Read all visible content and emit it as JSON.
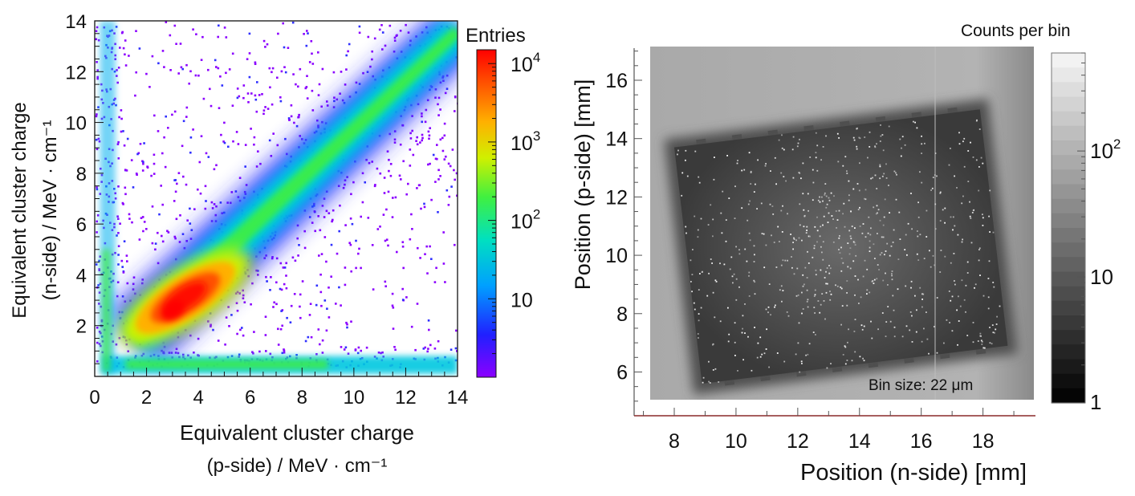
{
  "chart_data": [
    {
      "type": "heatmap",
      "title": "",
      "xlabel_line1": "Equivalent cluster charge",
      "xlabel_line2": "(p-side) / MeV · cm⁻¹",
      "ylabel_line1": "Equivalent cluster charge",
      "ylabel_line2": "(n-side) / MeV · cm⁻¹",
      "xlim": [
        0,
        14
      ],
      "ylim": [
        0,
        14
      ],
      "xticks": [
        "0",
        "2",
        "4",
        "6",
        "8",
        "10",
        "12",
        "14"
      ],
      "yticks": [
        "2",
        "4",
        "6",
        "8",
        "10",
        "12",
        "14"
      ],
      "colorbar": {
        "label": "Entries",
        "scale": "log",
        "range": [
          1,
          15000
        ],
        "ticks": [
          {
            "base": "10",
            "exp": "",
            "value": 10
          },
          {
            "base": "10",
            "exp": "2",
            "value": 100
          },
          {
            "base": "10",
            "exp": "3",
            "value": 1000
          },
          {
            "base": "10",
            "exp": "4",
            "value": 10000
          }
        ],
        "colormap": [
          "#8b00ff",
          "#2020ff",
          "#00a0ff",
          "#00e0c0",
          "#40f040",
          "#d0f000",
          "#ffb000",
          "#ff5000",
          "#ff0000"
        ]
      },
      "features": {
        "peak": {
          "x": 3.0,
          "y": 2.6,
          "entries": 12000
        },
        "diagonal_band": {
          "from": [
            1.5,
            1.5
          ],
          "to": [
            14,
            13.6
          ]
        },
        "noise_floor_n": 0.5,
        "noise_floor_p": 0.4
      }
    },
    {
      "type": "heatmap",
      "title": "Counts per bin",
      "xlabel": "Position (n-side) [mm]",
      "ylabel": "Position (p-side)  [mm]",
      "xlim": [
        6.7,
        19.7
      ],
      "ylim": [
        4.5,
        17.1
      ],
      "xticks": [
        "8",
        "10",
        "12",
        "14",
        "16",
        "18"
      ],
      "yticks": [
        "6",
        "8",
        "10",
        "12",
        "14",
        "16"
      ],
      "annotation": "Bin size: 22 μm",
      "colorbar": {
        "scale": "log",
        "range": [
          1,
          600
        ],
        "ticks": [
          {
            "base": "1",
            "exp": "",
            "value": 1
          },
          {
            "base": "10",
            "exp": "",
            "value": 10
          },
          {
            "base": "10",
            "exp": "2",
            "value": 100
          }
        ],
        "colormap": [
          "#000000",
          "#ffffff"
        ]
      },
      "chip": {
        "corners_mm": [
          [
            8.0,
            13.7
          ],
          [
            17.9,
            15.0
          ],
          [
            18.8,
            6.9
          ],
          [
            8.9,
            5.6
          ]
        ],
        "body_counts": 5,
        "background_counts": 150,
        "pins_top": 8,
        "pins_bottom": 8
      }
    }
  ]
}
